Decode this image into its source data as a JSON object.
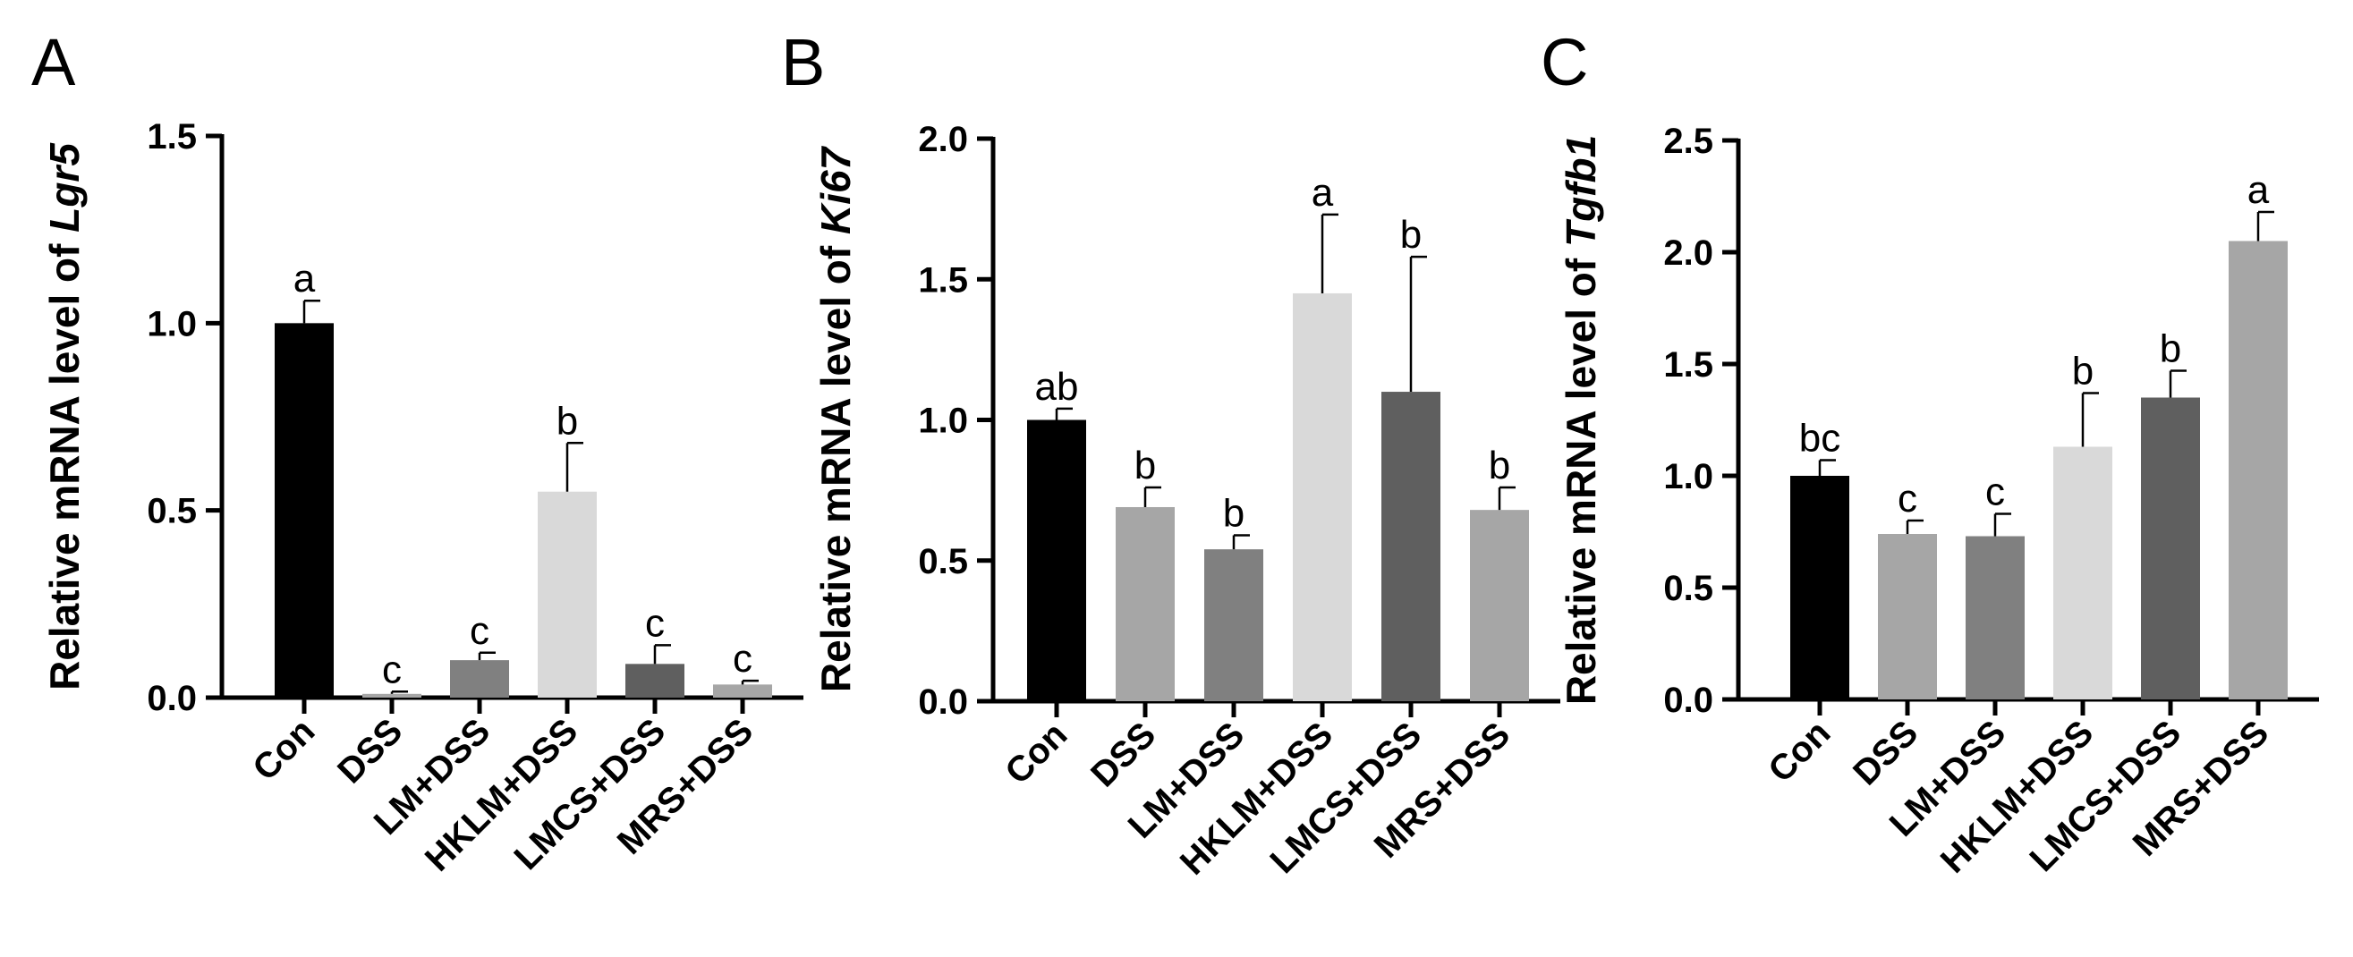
{
  "chart_data": [
    {
      "type": "bar",
      "panel": "A",
      "ylabel_prefix": "Relative  mRNA level of ",
      "gene": "Lgr5",
      "categories": [
        "Con",
        "DSS",
        "LM+DSS",
        "HKLM+DSS",
        "LMCS+DSS",
        "MRS+DSS"
      ],
      "values": [
        1.0,
        0.01,
        0.1,
        0.55,
        0.09,
        0.035
      ],
      "errors": [
        0.06,
        0.006,
        0.02,
        0.13,
        0.05,
        0.01
      ],
      "letters": [
        "a",
        "c",
        "c",
        "b",
        "c",
        "c"
      ],
      "colors": [
        "#000000",
        "#a6a6a6",
        "#808080",
        "#d9d9d9",
        "#5f5f5f",
        "#a6a6a6"
      ],
      "ylim": [
        0,
        1.5
      ],
      "yticks": [
        "0.0",
        "0.5",
        "1.0",
        "1.5"
      ]
    },
    {
      "type": "bar",
      "panel": "B",
      "ylabel_prefix": "Relative  mRNA level of ",
      "gene": "Ki67",
      "categories": [
        "Con",
        "DSS",
        "LM+DSS",
        "HKLM+DSS",
        "LMCS+DSS",
        "MRS+DSS"
      ],
      "values": [
        1.0,
        0.69,
        0.54,
        1.45,
        1.1,
        0.68
      ],
      "errors": [
        0.04,
        0.07,
        0.05,
        0.28,
        0.48,
        0.08
      ],
      "letters": [
        "ab",
        "b",
        "b",
        "a",
        "b",
        "b"
      ],
      "colors": [
        "#000000",
        "#a6a6a6",
        "#808080",
        "#d9d9d9",
        "#5f5f5f",
        "#a6a6a6"
      ],
      "ylim": [
        0,
        2.0
      ],
      "yticks": [
        "0.0",
        "0.5",
        "1.0",
        "1.5",
        "2.0"
      ]
    },
    {
      "type": "bar",
      "panel": "C",
      "ylabel_prefix": "Relative  mRNA level of ",
      "gene": "Tgfb1",
      "categories": [
        "Con",
        "DSS",
        "LM+DSS",
        "HKLM+DSS",
        "LMCS+DSS",
        "MRS+DSS"
      ],
      "values": [
        1.0,
        0.74,
        0.73,
        1.13,
        1.35,
        2.05
      ],
      "errors": [
        0.07,
        0.06,
        0.1,
        0.24,
        0.12,
        0.13
      ],
      "letters": [
        "bc",
        "c",
        "c",
        "b",
        "b",
        "a"
      ],
      "colors": [
        "#000000",
        "#a6a6a6",
        "#808080",
        "#d9d9d9",
        "#5f5f5f",
        "#a6a6a6"
      ],
      "ylim": [
        0,
        2.5
      ],
      "yticks": [
        "0.0",
        "0.5",
        "1.0",
        "1.5",
        "2.0",
        "2.5"
      ]
    }
  ]
}
